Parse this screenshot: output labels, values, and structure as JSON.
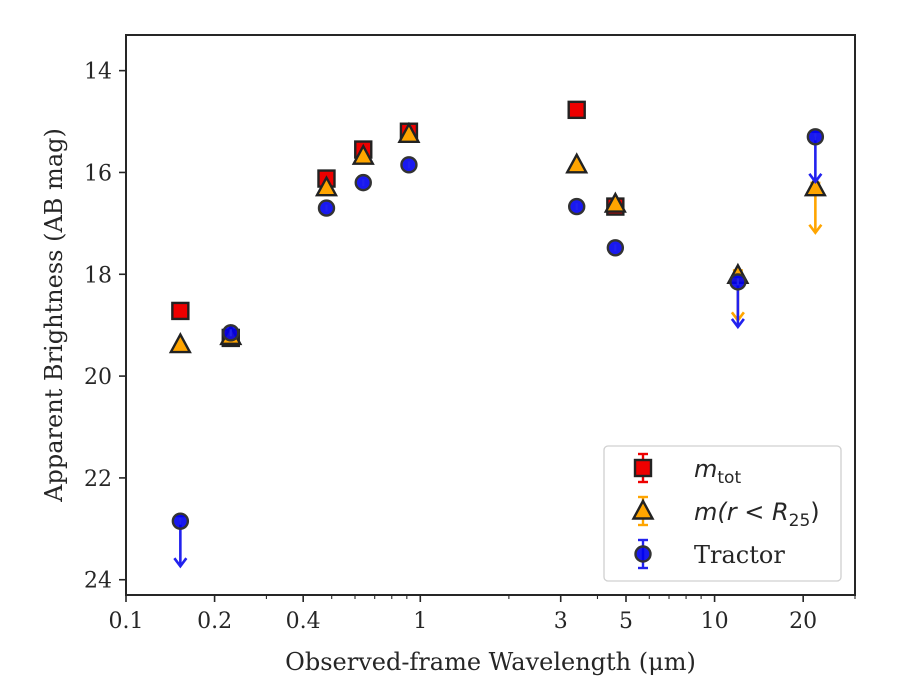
{
  "chart_data": {
    "type": "scatter",
    "xlabel": "Observed-frame Wavelength (μm)",
    "ylabel": "Apparent Brightness (AB mag)",
    "x_scale": "log",
    "xlim": [
      0.1,
      30
    ],
    "ylim": [
      24.3,
      13.3
    ],
    "y_inverted": true,
    "x_ticks": [
      0.1,
      0.2,
      0.4,
      1,
      3,
      5,
      10,
      20
    ],
    "x_tick_labels": [
      "0.1",
      "0.2",
      "0.4",
      "1",
      "3",
      "5",
      "10",
      "20"
    ],
    "y_ticks": [
      14,
      16,
      18,
      20,
      22,
      24
    ],
    "y_tick_labels": [
      "14",
      "16",
      "18",
      "20",
      "22",
      "24"
    ],
    "grid": false,
    "legend_position": "lower-right",
    "series": [
      {
        "name": "m_tot",
        "legend": {
          "main": "m",
          "sub": "tot"
        },
        "marker": "square",
        "color": "#ee0000",
        "errcolor": "#ee0000",
        "points": [
          {
            "x": 0.153,
            "y": 18.72
          },
          {
            "x": 0.227,
            "y": 19.25
          },
          {
            "x": 0.48,
            "y": 16.12
          },
          {
            "x": 0.64,
            "y": 15.55
          },
          {
            "x": 0.915,
            "y": 15.2
          },
          {
            "x": 3.4,
            "y": 14.77
          },
          {
            "x": 4.6,
            "y": 16.67
          }
        ]
      },
      {
        "name": "m(r<R_25)",
        "legend": {
          "main": "m(r < R",
          "sub": "25",
          "tail": ")"
        },
        "marker": "triangle",
        "color": "#ffa500",
        "errcolor": "#ffa500",
        "points": [
          {
            "x": 0.153,
            "y": 19.38
          },
          {
            "x": 0.227,
            "y": 19.22
          },
          {
            "x": 0.48,
            "y": 16.3
          },
          {
            "x": 0.64,
            "y": 15.68
          },
          {
            "x": 0.915,
            "y": 15.25
          },
          {
            "x": 3.4,
            "y": 15.85
          },
          {
            "x": 4.6,
            "y": 16.62
          },
          {
            "x": 12.0,
            "y": 18.02,
            "upper_limit": true
          },
          {
            "x": 22.0,
            "y": 16.3,
            "upper_limit": true
          }
        ]
      },
      {
        "name": "Tractor",
        "legend": {
          "main": "Tractor"
        },
        "marker": "circle",
        "color": "#0000ee",
        "errcolor": "#2222ee",
        "points": [
          {
            "x": 0.153,
            "y": 22.85,
            "upper_limit": true
          },
          {
            "x": 0.227,
            "y": 19.15
          },
          {
            "x": 0.48,
            "y": 16.7
          },
          {
            "x": 0.64,
            "y": 16.2
          },
          {
            "x": 0.915,
            "y": 15.85
          },
          {
            "x": 3.4,
            "y": 16.67
          },
          {
            "x": 4.6,
            "y": 17.48
          },
          {
            "x": 12.0,
            "y": 18.15,
            "upper_limit": true
          },
          {
            "x": 22.0,
            "y": 15.3,
            "upper_limit": true
          }
        ]
      }
    ]
  }
}
